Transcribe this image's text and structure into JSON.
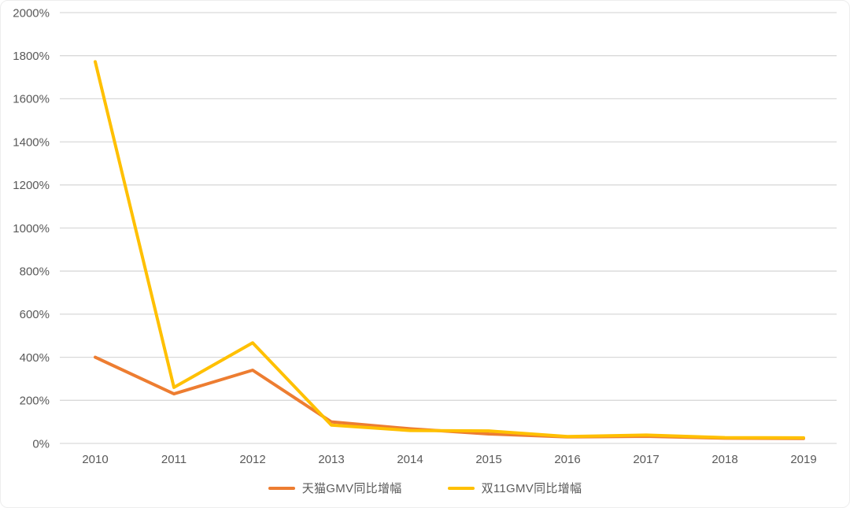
{
  "chart_data": {
    "type": "line",
    "title": "",
    "categories": [
      "2010",
      "2011",
      "2012",
      "2013",
      "2014",
      "2015",
      "2016",
      "2017",
      "2018",
      "2019"
    ],
    "series": [
      {
        "name": "天猫GMV同比增幅",
        "color": "#ED7D31",
        "values": [
          400,
          230,
          340,
          100,
          68,
          44,
          30,
          33,
          24,
          23
        ]
      },
      {
        "name": "双11GMV同比增幅",
        "color": "#FFC000",
        "values": [
          1772,
          260,
          467,
          85,
          60,
          58,
          32,
          39,
          27,
          26
        ]
      }
    ],
    "xlabel": "",
    "ylabel": "",
    "ylim": [
      0,
      2000
    ],
    "ytick_labels": [
      "0%",
      "200%",
      "400%",
      "600%",
      "800%",
      "1000%",
      "1200%",
      "1400%",
      "1600%",
      "1800%",
      "2000%"
    ],
    "grid": true,
    "legend_position": "bottom",
    "styles": {
      "gridline_color": "#D9D9D9",
      "axis_text_color": "#595959",
      "line_width": 4,
      "background": "#FFFFFF",
      "card_border_color": "#EDEDED"
    }
  }
}
